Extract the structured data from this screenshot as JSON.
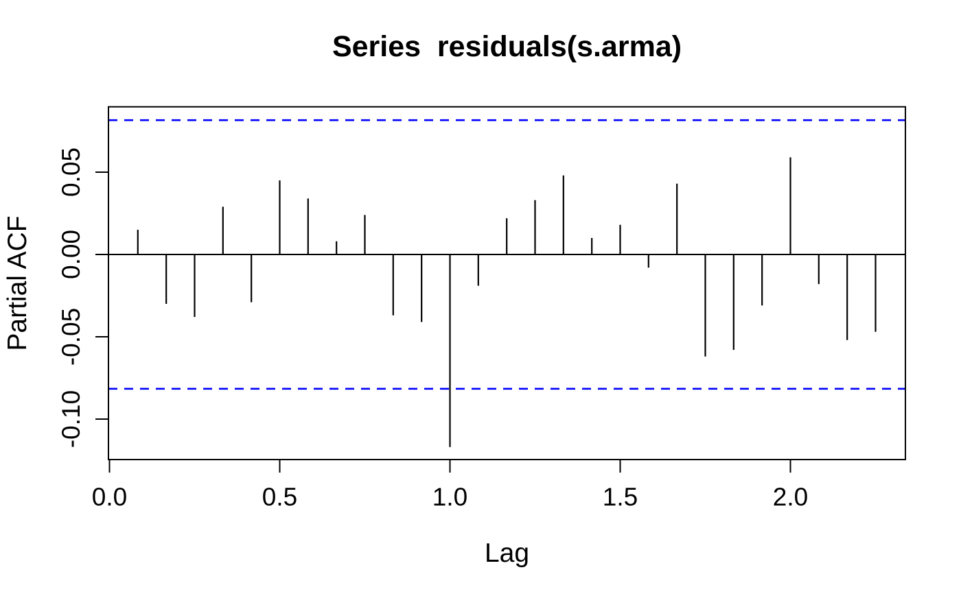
{
  "window": {
    "background": "#ffffff"
  },
  "chart_data": {
    "type": "bar",
    "style": "stem (R pacf plot, vertical lines from zero)",
    "title": "Series  residuals(s.arma)",
    "xlabel": "Lag",
    "ylabel": "Partial ACF",
    "x": [
      0.0833,
      0.1667,
      0.25,
      0.3333,
      0.4167,
      0.5,
      0.5833,
      0.6667,
      0.75,
      0.8333,
      0.9167,
      1.0,
      1.0833,
      1.1667,
      1.25,
      1.3333,
      1.4167,
      1.5,
      1.5833,
      1.6667,
      1.75,
      1.8333,
      1.9167,
      2.0,
      2.0833,
      2.1667,
      2.25
    ],
    "values": [
      0.015,
      -0.03,
      -0.038,
      0.029,
      -0.029,
      0.045,
      0.034,
      0.008,
      0.024,
      -0.037,
      -0.041,
      -0.117,
      -0.019,
      0.022,
      0.033,
      0.048,
      0.01,
      0.018,
      -0.008,
      0.043,
      -0.062,
      -0.058,
      -0.031,
      0.059,
      -0.018,
      -0.052,
      -0.047
    ],
    "xlim": [
      -0.003,
      2.3377
    ],
    "ylim": [
      -0.1246,
      0.0897
    ],
    "x_ticks": {
      "values": [
        0.0,
        0.5,
        1.0,
        1.5,
        2.0
      ],
      "labels": [
        "0.0",
        "0.5",
        "1.0",
        "1.5",
        "2.0"
      ]
    },
    "y_ticks": {
      "values": [
        0.05,
        0.0,
        -0.05,
        -0.1
      ],
      "labels": [
        "0.05",
        "0.00",
        "-0.05",
        "-0.10"
      ]
    },
    "zero_line": 0,
    "confidence_band": 0.0816,
    "grid": false,
    "legend": null
  },
  "colors": {
    "spike": "#000000",
    "axis": "#000000",
    "text": "#000000",
    "confidence_line": "#0000ff",
    "background": "#ffffff"
  }
}
